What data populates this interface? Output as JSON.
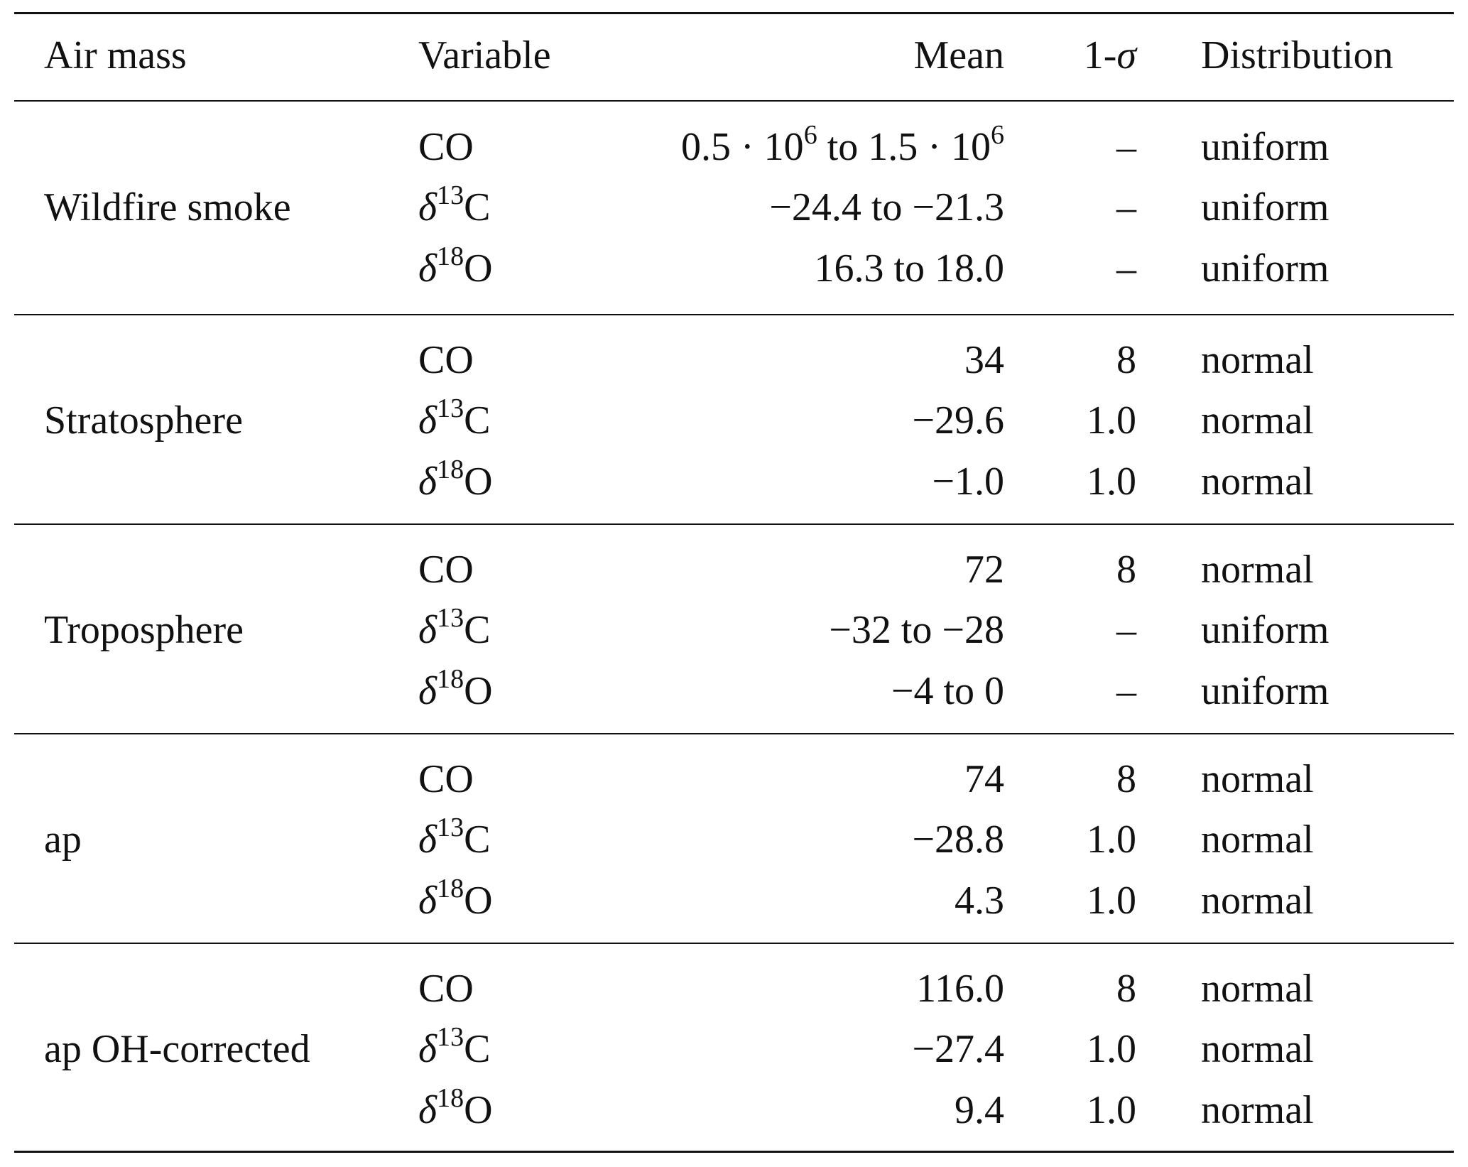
{
  "table": {
    "headers": {
      "air_mass": "Air mass",
      "variable": "Variable",
      "mean": "Mean",
      "sigma_prefix": "1-",
      "sigma_symbol": "σ",
      "distribution": "Distribution"
    },
    "groups": [
      {
        "air_mass": "Wildfire smoke",
        "rows": [
          {
            "var_base": "CO",
            "var_sup": "",
            "var_tail": "",
            "mean_html": "0.5 · 10<sup>6</sup> to 1.5 · 10<sup>6</sup>",
            "mean": "0.5 · 10^6 to 1.5 · 10^6",
            "sigma": "–",
            "dist": "uniform"
          },
          {
            "var_base": "δ",
            "var_sup": "13",
            "var_tail": "C",
            "mean": "−24.4 to −21.3",
            "sigma": "–",
            "dist": "uniform"
          },
          {
            "var_base": "δ",
            "var_sup": "18",
            "var_tail": "O",
            "mean": "16.3 to 18.0",
            "sigma": "–",
            "dist": "uniform"
          }
        ]
      },
      {
        "air_mass": "Stratosphere",
        "rows": [
          {
            "var_base": "CO",
            "var_sup": "",
            "var_tail": "",
            "mean": "34",
            "sigma": "8",
            "dist": "normal"
          },
          {
            "var_base": "δ",
            "var_sup": "13",
            "var_tail": "C",
            "mean": "−29.6",
            "sigma": "1.0",
            "dist": "normal"
          },
          {
            "var_base": "δ",
            "var_sup": "18",
            "var_tail": "O",
            "mean": "−1.0",
            "sigma": "1.0",
            "dist": "normal"
          }
        ]
      },
      {
        "air_mass": "Troposphere",
        "rows": [
          {
            "var_base": "CO",
            "var_sup": "",
            "var_tail": "",
            "mean": "72",
            "sigma": "8",
            "dist": "normal"
          },
          {
            "var_base": "δ",
            "var_sup": "13",
            "var_tail": "C",
            "mean": "−32 to −28",
            "sigma": "–",
            "dist": "uniform"
          },
          {
            "var_base": "δ",
            "var_sup": "18",
            "var_tail": "O",
            "mean": "−4 to 0",
            "sigma": "–",
            "dist": "uniform"
          }
        ]
      },
      {
        "air_mass": "ap",
        "rows": [
          {
            "var_base": "CO",
            "var_sup": "",
            "var_tail": "",
            "mean": "74",
            "sigma": "8",
            "dist": "normal"
          },
          {
            "var_base": "δ",
            "var_sup": "13",
            "var_tail": "C",
            "mean": "−28.8",
            "sigma": "1.0",
            "dist": "normal"
          },
          {
            "var_base": "δ",
            "var_sup": "18",
            "var_tail": "O",
            "mean": "4.3",
            "sigma": "1.0",
            "dist": "normal"
          }
        ]
      },
      {
        "air_mass": "ap OH-corrected",
        "rows": [
          {
            "var_base": "CO",
            "var_sup": "",
            "var_tail": "",
            "mean": "116.0",
            "sigma": "8",
            "dist": "normal"
          },
          {
            "var_base": "δ",
            "var_sup": "13",
            "var_tail": "C",
            "mean": "−27.4",
            "sigma": "1.0",
            "dist": "normal"
          },
          {
            "var_base": "δ",
            "var_sup": "18",
            "var_tail": "O",
            "mean": "9.4",
            "sigma": "1.0",
            "dist": "normal"
          }
        ]
      }
    ]
  }
}
